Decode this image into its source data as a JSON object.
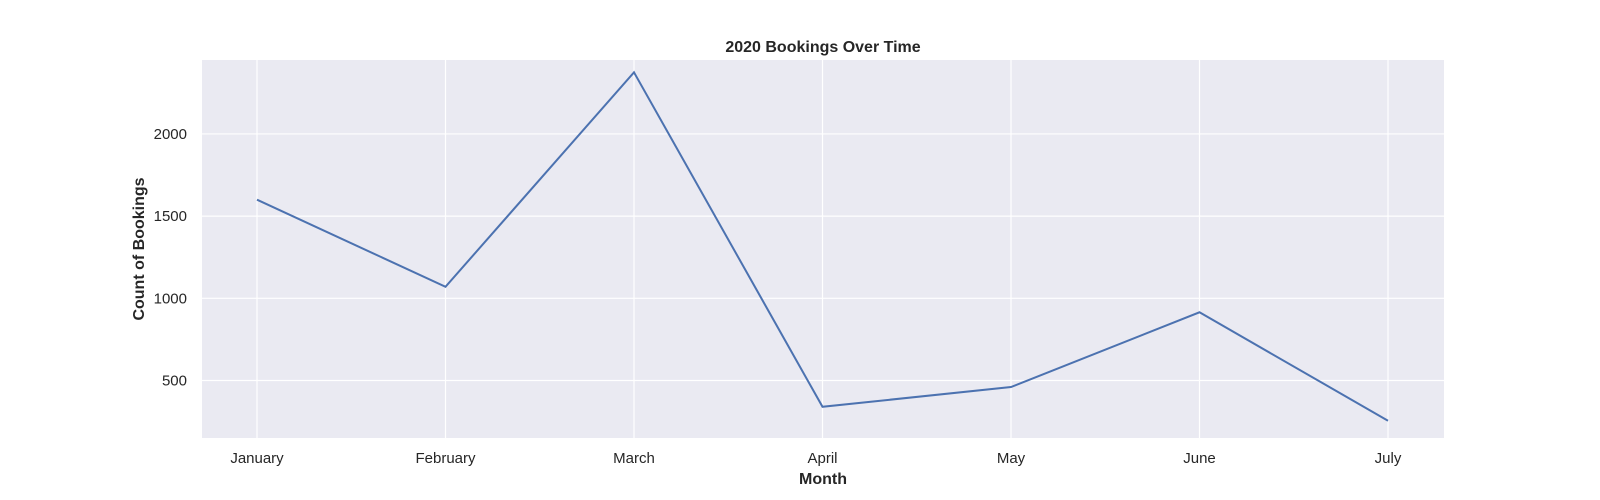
{
  "chart_data": {
    "type": "line",
    "title": "2020 Bookings Over Time",
    "xlabel": "Month",
    "ylabel": "Count of Bookings",
    "categories": [
      "January",
      "February",
      "March",
      "April",
      "May",
      "June",
      "July"
    ],
    "series": [
      {
        "values": [
          1600,
          1070,
          2375,
          340,
          460,
          915,
          255
        ]
      }
    ],
    "ylim": [
      150,
      2450
    ],
    "yticks": [
      500,
      1000,
      1500,
      2000
    ],
    "grid": true,
    "colors": {
      "line": "#4c72b0",
      "plot_background": "#eaeaf2",
      "grid": "#ffffff"
    }
  }
}
